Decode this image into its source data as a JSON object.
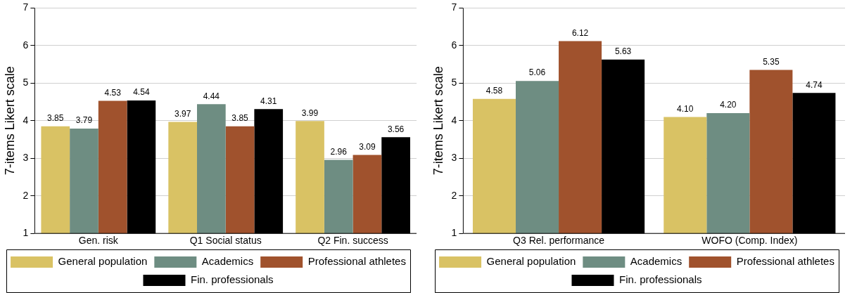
{
  "chart_data": [
    {
      "type": "bar",
      "ylabel": "7-items Likert scale",
      "categories": [
        "Gen. risk",
        "Q1 Social status",
        "Q2 Fin. success"
      ],
      "ylim": [
        1,
        7
      ],
      "yticks": [
        1,
        2,
        3,
        4,
        5,
        6,
        7
      ],
      "grid": "y",
      "legend": "bottom",
      "series": [
        {
          "name": "General population",
          "color": "#d9c264",
          "values": [
            3.85,
            3.97,
            3.99
          ],
          "value_labels": [
            "3.85",
            "3.97",
            "3.99"
          ]
        },
        {
          "name": "Academics",
          "color": "#6e8d82",
          "values": [
            3.79,
            4.44,
            2.96
          ],
          "value_labels": [
            "3.79",
            "4.44",
            "2.96"
          ]
        },
        {
          "name": "Professional athletes",
          "color": "#a0522d",
          "values": [
            4.53,
            3.85,
            3.09
          ],
          "value_labels": [
            "4.53",
            "3.85",
            "3.09"
          ]
        },
        {
          "name": "Fin. professionals",
          "color": "#000000",
          "values": [
            4.54,
            4.31,
            3.56
          ],
          "value_labels": [
            "4.54",
            "4.31",
            "3.56"
          ]
        }
      ]
    },
    {
      "type": "bar",
      "ylabel": "7-items Likert scale",
      "categories": [
        "Q3 Rel. performance",
        "WOFO (Comp. Index)"
      ],
      "ylim": [
        1,
        7
      ],
      "yticks": [
        1,
        2,
        3,
        4,
        5,
        6,
        7
      ],
      "grid": "y",
      "legend": "bottom",
      "series": [
        {
          "name": "General population",
          "color": "#d9c264",
          "values": [
            4.58,
            4.1
          ],
          "value_labels": [
            "4.58",
            "4.10"
          ]
        },
        {
          "name": "Academics",
          "color": "#6e8d82",
          "values": [
            5.06,
            4.2
          ],
          "value_labels": [
            "5.06",
            "4.20"
          ]
        },
        {
          "name": "Professional athletes",
          "color": "#a0522d",
          "values": [
            6.12,
            5.35
          ],
          "value_labels": [
            "6.12",
            "5.35"
          ]
        },
        {
          "name": "Fin. professionals",
          "color": "#000000",
          "values": [
            5.63,
            4.74
          ],
          "value_labels": [
            "5.63",
            "4.74"
          ]
        }
      ]
    }
  ]
}
